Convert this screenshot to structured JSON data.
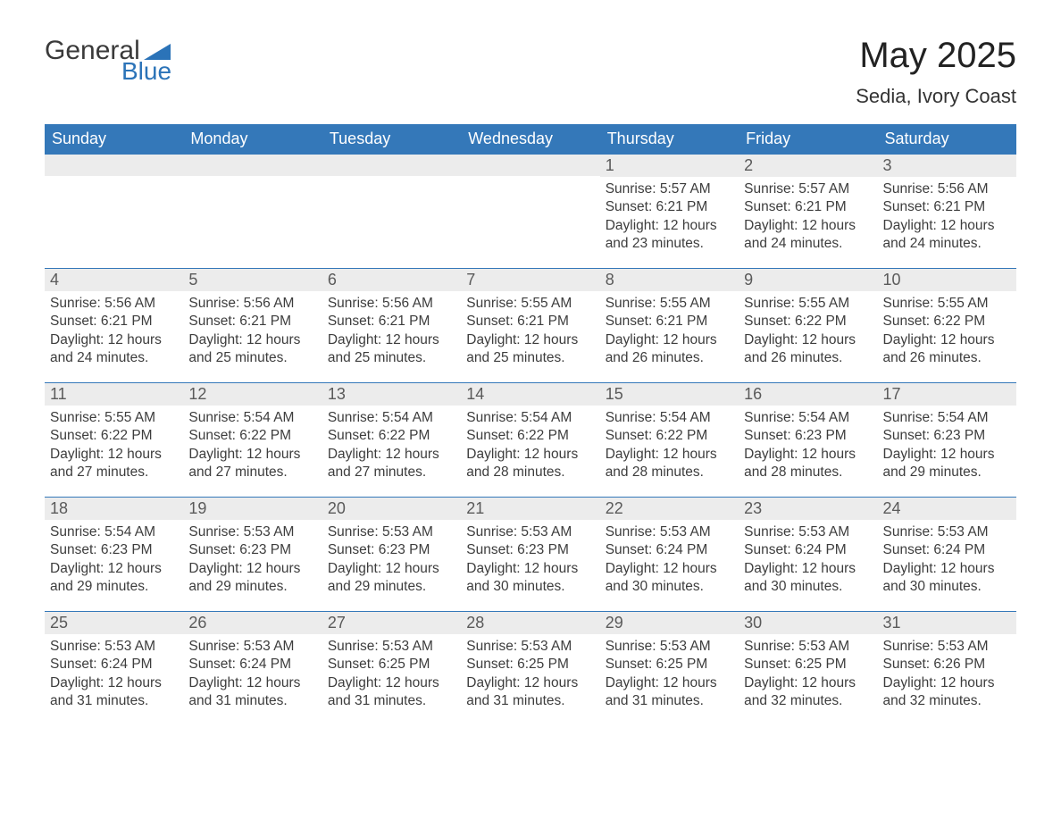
{
  "logo": {
    "text1": "General",
    "text2": "Blue"
  },
  "title": "May 2025",
  "location": "Sedia, Ivory Coast",
  "colors": {
    "header_bg": "#3478b9",
    "header_fg": "#ffffff",
    "daynum_bg": "#ececec",
    "row_border": "#3478b9",
    "body_text": "#3d3d3d",
    "logo_blue": "#2b73b8"
  },
  "days_of_week": [
    "Sunday",
    "Monday",
    "Tuesday",
    "Wednesday",
    "Thursday",
    "Friday",
    "Saturday"
  ],
  "weeks": [
    [
      null,
      null,
      null,
      null,
      {
        "n": "1",
        "sunrise": "5:57 AM",
        "sunset": "6:21 PM",
        "daylight": "12 hours and 23 minutes."
      },
      {
        "n": "2",
        "sunrise": "5:57 AM",
        "sunset": "6:21 PM",
        "daylight": "12 hours and 24 minutes."
      },
      {
        "n": "3",
        "sunrise": "5:56 AM",
        "sunset": "6:21 PM",
        "daylight": "12 hours and 24 minutes."
      }
    ],
    [
      {
        "n": "4",
        "sunrise": "5:56 AM",
        "sunset": "6:21 PM",
        "daylight": "12 hours and 24 minutes."
      },
      {
        "n": "5",
        "sunrise": "5:56 AM",
        "sunset": "6:21 PM",
        "daylight": "12 hours and 25 minutes."
      },
      {
        "n": "6",
        "sunrise": "5:56 AM",
        "sunset": "6:21 PM",
        "daylight": "12 hours and 25 minutes."
      },
      {
        "n": "7",
        "sunrise": "5:55 AM",
        "sunset": "6:21 PM",
        "daylight": "12 hours and 25 minutes."
      },
      {
        "n": "8",
        "sunrise": "5:55 AM",
        "sunset": "6:21 PM",
        "daylight": "12 hours and 26 minutes."
      },
      {
        "n": "9",
        "sunrise": "5:55 AM",
        "sunset": "6:22 PM",
        "daylight": "12 hours and 26 minutes."
      },
      {
        "n": "10",
        "sunrise": "5:55 AM",
        "sunset": "6:22 PM",
        "daylight": "12 hours and 26 minutes."
      }
    ],
    [
      {
        "n": "11",
        "sunrise": "5:55 AM",
        "sunset": "6:22 PM",
        "daylight": "12 hours and 27 minutes."
      },
      {
        "n": "12",
        "sunrise": "5:54 AM",
        "sunset": "6:22 PM",
        "daylight": "12 hours and 27 minutes."
      },
      {
        "n": "13",
        "sunrise": "5:54 AM",
        "sunset": "6:22 PM",
        "daylight": "12 hours and 27 minutes."
      },
      {
        "n": "14",
        "sunrise": "5:54 AM",
        "sunset": "6:22 PM",
        "daylight": "12 hours and 28 minutes."
      },
      {
        "n": "15",
        "sunrise": "5:54 AM",
        "sunset": "6:22 PM",
        "daylight": "12 hours and 28 minutes."
      },
      {
        "n": "16",
        "sunrise": "5:54 AM",
        "sunset": "6:23 PM",
        "daylight": "12 hours and 28 minutes."
      },
      {
        "n": "17",
        "sunrise": "5:54 AM",
        "sunset": "6:23 PM",
        "daylight": "12 hours and 29 minutes."
      }
    ],
    [
      {
        "n": "18",
        "sunrise": "5:54 AM",
        "sunset": "6:23 PM",
        "daylight": "12 hours and 29 minutes."
      },
      {
        "n": "19",
        "sunrise": "5:53 AM",
        "sunset": "6:23 PM",
        "daylight": "12 hours and 29 minutes."
      },
      {
        "n": "20",
        "sunrise": "5:53 AM",
        "sunset": "6:23 PM",
        "daylight": "12 hours and 29 minutes."
      },
      {
        "n": "21",
        "sunrise": "5:53 AM",
        "sunset": "6:23 PM",
        "daylight": "12 hours and 30 minutes."
      },
      {
        "n": "22",
        "sunrise": "5:53 AM",
        "sunset": "6:24 PM",
        "daylight": "12 hours and 30 minutes."
      },
      {
        "n": "23",
        "sunrise": "5:53 AM",
        "sunset": "6:24 PM",
        "daylight": "12 hours and 30 minutes."
      },
      {
        "n": "24",
        "sunrise": "5:53 AM",
        "sunset": "6:24 PM",
        "daylight": "12 hours and 30 minutes."
      }
    ],
    [
      {
        "n": "25",
        "sunrise": "5:53 AM",
        "sunset": "6:24 PM",
        "daylight": "12 hours and 31 minutes."
      },
      {
        "n": "26",
        "sunrise": "5:53 AM",
        "sunset": "6:24 PM",
        "daylight": "12 hours and 31 minutes."
      },
      {
        "n": "27",
        "sunrise": "5:53 AM",
        "sunset": "6:25 PM",
        "daylight": "12 hours and 31 minutes."
      },
      {
        "n": "28",
        "sunrise": "5:53 AM",
        "sunset": "6:25 PM",
        "daylight": "12 hours and 31 minutes."
      },
      {
        "n": "29",
        "sunrise": "5:53 AM",
        "sunset": "6:25 PM",
        "daylight": "12 hours and 31 minutes."
      },
      {
        "n": "30",
        "sunrise": "5:53 AM",
        "sunset": "6:25 PM",
        "daylight": "12 hours and 32 minutes."
      },
      {
        "n": "31",
        "sunrise": "5:53 AM",
        "sunset": "6:26 PM",
        "daylight": "12 hours and 32 minutes."
      }
    ]
  ],
  "labels": {
    "sunrise": "Sunrise:",
    "sunset": "Sunset:",
    "daylight": "Daylight:"
  }
}
